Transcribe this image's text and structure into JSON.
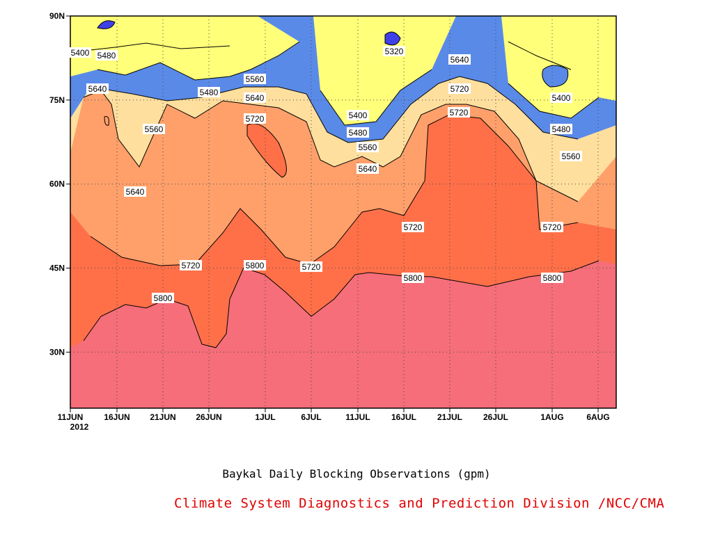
{
  "chart_data": {
    "type": "contour",
    "title": "Baykal Daily Blocking Observations (gpm)",
    "x_ticks": [
      "11JUN",
      "16JUN",
      "21JUN",
      "26JUN",
      "1JUL",
      "6JUL",
      "11JUL",
      "16JUL",
      "21JUL",
      "26JUL",
      "1AUG",
      "6AUG"
    ],
    "x_year_label": "2012",
    "y_ticks": [
      "30N",
      "45N",
      "60N",
      "75N",
      "90N"
    ],
    "xlim_days": [
      "2012-06-11",
      "2012-08-08"
    ],
    "ylim_lat": [
      20,
      90
    ],
    "grid": "dotted",
    "levels": [
      5320,
      5400,
      5480,
      5560,
      5640,
      5720,
      5800
    ],
    "level_colors": {
      "below_5320": "#4040e8",
      "5320_5400": "#5a8ae8",
      "5400_5480": "#66c8ff",
      "5480_5560": "#ffff7a",
      "5560_5640": "#ffdf9e",
      "5640_5720": "#ffa06a",
      "5720_5800": "#ff7048",
      "above_5800": "#f56e7a"
    },
    "contour_labels": [
      {
        "value": "5400"
      },
      {
        "value": "5480"
      },
      {
        "value": "5320"
      },
      {
        "value": "5560"
      },
      {
        "value": "5640"
      },
      {
        "value": "5480"
      },
      {
        "value": "5560"
      },
      {
        "value": "5640"
      },
      {
        "value": "5720"
      },
      {
        "value": "5400"
      },
      {
        "value": "5480"
      },
      {
        "value": "5560"
      },
      {
        "value": "5640"
      },
      {
        "value": "5720"
      },
      {
        "value": "5400"
      },
      {
        "value": "5480"
      },
      {
        "value": "5560"
      },
      {
        "value": "5640"
      },
      {
        "value": "5720"
      },
      {
        "value": "5720"
      },
      {
        "value": "5720"
      },
      {
        "value": "5800"
      },
      {
        "value": "5720"
      },
      {
        "value": "5800"
      },
      {
        "value": "5800"
      },
      {
        "value": "5800"
      },
      {
        "value": "5720"
      },
      {
        "value": "5640"
      }
    ]
  },
  "captions": {
    "title": "Baykal Daily Blocking Observations (gpm)",
    "credit": "Climate System Diagnostics and Prediction Division /NCC/CMA"
  }
}
